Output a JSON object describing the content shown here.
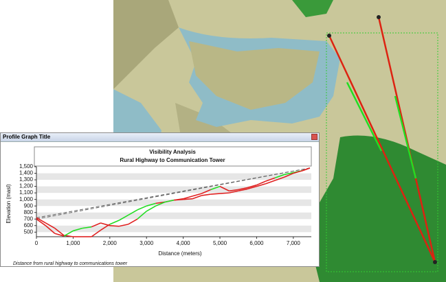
{
  "window": {
    "title": "Profile Graph Title"
  },
  "chart_data": {
    "type": "line",
    "title": "Visibility Analysis",
    "subtitle": "Rural Highway to Communication Tower",
    "xlabel": "Distance (meters)",
    "ylabel": "Elevation (masl)",
    "footnote": "Distance from rural highway to communications tower",
    "xlim": [
      0,
      7490
    ],
    "ylim": [
      430,
      1500
    ],
    "xticks": [
      0,
      {
        "value": 1000,
        "label": "1,000"
      },
      {
        "value": 2000,
        "label": "2,000"
      },
      {
        "value": 3000,
        "label": "3,000"
      },
      {
        "value": 4000,
        "label": "4,000"
      },
      {
        "value": 5000,
        "label": "5,000"
      },
      {
        "value": 6000,
        "label": "6,000"
      },
      {
        "value": 7000,
        "label": "7,000"
      }
    ],
    "yticks": [
      500,
      600,
      700,
      800,
      900,
      {
        "value": 1000,
        "label": "1,000"
      },
      {
        "value": 1100,
        "label": "1,100"
      },
      {
        "value": 1200,
        "label": "1,200"
      },
      {
        "value": 1300,
        "label": "1,300"
      },
      {
        "value": 1400,
        "label": "1,400"
      },
      {
        "value": 1500,
        "label": "1,500"
      }
    ],
    "grid": true,
    "visible_color": "#22dd22",
    "x": [
      0,
      250,
      500,
      750,
      1000,
      1250,
      1500,
      1750,
      2000,
      2250,
      2500,
      2750,
      3000,
      3250,
      3500,
      3750,
      4000,
      4250,
      4500,
      4750,
      5000,
      5250,
      5500,
      5750,
      6000,
      6250,
      6500,
      6750,
      7000,
      7250,
      7450
    ],
    "series": [
      {
        "color": "#e02020",
        "values": [
          720,
          640,
          560,
          450,
          430,
          430,
          430,
          530,
          620,
          680,
          760,
          840,
          900,
          940,
          960,
          990,
          1010,
          1050,
          1090,
          1150,
          1200,
          1130,
          1150,
          1180,
          1220,
          1280,
          1330,
          1380,
          1410,
          1440,
          1480
        ],
        "visible": [
          false,
          false,
          false,
          false,
          false,
          false,
          false,
          false,
          true,
          true,
          true,
          true,
          true,
          false,
          false,
          false,
          false,
          false,
          false,
          true,
          false,
          false,
          false,
          false,
          false,
          false,
          true,
          true,
          true,
          false,
          false
        ]
      },
      {
        "color": "#e02020",
        "values": [
          700,
          600,
          480,
          440,
          520,
          560,
          580,
          640,
          600,
          590,
          620,
          700,
          820,
          900,
          960,
          990,
          1000,
          1010,
          1060,
          1080,
          1090,
          1100,
          1130,
          1160,
          1200,
          1240,
          1290,
          1340,
          1400,
          1440,
          1480
        ],
        "visible": [
          false,
          false,
          false,
          true,
          true,
          true,
          false,
          false,
          false,
          false,
          false,
          true,
          true,
          true,
          true,
          false,
          false,
          false,
          false,
          false,
          false,
          false,
          false,
          false,
          false,
          false,
          false,
          false,
          false,
          false,
          false
        ]
      }
    ],
    "sightlines": {
      "color": "#666666",
      "x": [
        0,
        7450
      ],
      "lines": [
        [
          720,
          1480
        ],
        [
          700,
          1480
        ]
      ]
    }
  }
}
